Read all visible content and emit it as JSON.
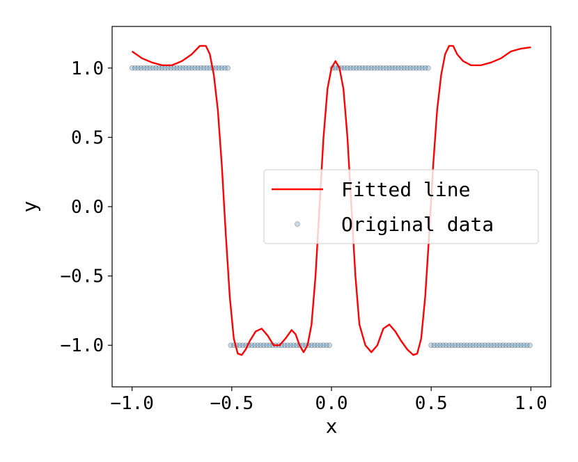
{
  "chart_data": {
    "type": "scatter",
    "title": "",
    "xlabel": "x",
    "ylabel": "y",
    "xlim": [
      -1.1,
      1.1
    ],
    "ylim": [
      -1.3,
      1.3
    ],
    "x_ticks": [
      -1.0,
      -0.5,
      0.0,
      0.5,
      1.0
    ],
    "x_tick_labels": [
      "−1.0",
      "−0.5",
      "0.0",
      "0.5",
      "1.0"
    ],
    "y_ticks": [
      -1.0,
      -0.5,
      0.0,
      0.5,
      1.0
    ],
    "y_tick_labels": [
      "−1.0",
      "−0.5",
      "0.0",
      "0.5",
      "1.0"
    ],
    "grid": false,
    "legend_position": "center-right",
    "legend": [
      "Fitted line",
      "Original data"
    ],
    "colors": {
      "fitted_line": "#ff0000",
      "original_data_fill": "#1f77b4",
      "original_data_edge": "#000000"
    },
    "series": [
      {
        "name": "Fitted line",
        "style": "line",
        "x": [
          -1.0,
          -0.95,
          -0.9,
          -0.85,
          -0.8,
          -0.75,
          -0.7,
          -0.66,
          -0.63,
          -0.61,
          -0.59,
          -0.57,
          -0.55,
          -0.53,
          -0.51,
          -0.49,
          -0.47,
          -0.45,
          -0.43,
          -0.41,
          -0.38,
          -0.35,
          -0.32,
          -0.29,
          -0.26,
          -0.23,
          -0.2,
          -0.18,
          -0.16,
          -0.14,
          -0.12,
          -0.1,
          -0.08,
          -0.06,
          -0.04,
          -0.02,
          0.0,
          0.02,
          0.04,
          0.06,
          0.08,
          0.1,
          0.12,
          0.14,
          0.17,
          0.2,
          0.23,
          0.26,
          0.29,
          0.32,
          0.35,
          0.38,
          0.41,
          0.43,
          0.45,
          0.47,
          0.49,
          0.51,
          0.53,
          0.55,
          0.57,
          0.59,
          0.61,
          0.63,
          0.66,
          0.7,
          0.75,
          0.8,
          0.85,
          0.9,
          0.95,
          1.0
        ],
        "y": [
          1.12,
          1.07,
          1.04,
          1.02,
          1.02,
          1.05,
          1.1,
          1.16,
          1.16,
          1.1,
          0.95,
          0.7,
          0.3,
          -0.2,
          -0.65,
          -0.95,
          -1.06,
          -1.07,
          -1.03,
          -0.97,
          -0.9,
          -0.88,
          -0.93,
          -1.0,
          -1.0,
          -0.95,
          -0.89,
          -0.92,
          -1.0,
          -1.05,
          -1.0,
          -0.85,
          -0.5,
          0.0,
          0.5,
          0.85,
          1.0,
          1.05,
          1.0,
          0.85,
          0.5,
          0.0,
          -0.5,
          -0.85,
          -1.0,
          -1.05,
          -1.0,
          -0.88,
          -0.85,
          -0.9,
          -0.97,
          -1.03,
          -1.07,
          -1.06,
          -0.95,
          -0.65,
          -0.2,
          0.3,
          0.7,
          0.95,
          1.1,
          1.16,
          1.16,
          1.1,
          1.05,
          1.02,
          1.02,
          1.04,
          1.07,
          1.12,
          1.14,
          1.15
        ]
      },
      {
        "name": "Original data",
        "style": "scatter",
        "x": [
          -1.0,
          -0.985,
          -0.97,
          -0.955,
          -0.94,
          -0.925,
          -0.91,
          -0.895,
          -0.88,
          -0.865,
          -0.85,
          -0.835,
          -0.82,
          -0.805,
          -0.79,
          -0.775,
          -0.76,
          -0.745,
          -0.73,
          -0.715,
          -0.7,
          -0.685,
          -0.67,
          -0.655,
          -0.64,
          -0.625,
          -0.61,
          -0.595,
          -0.58,
          -0.565,
          -0.55,
          -0.535,
          -0.52,
          -0.505,
          -0.49,
          -0.475,
          -0.46,
          -0.445,
          -0.43,
          -0.415,
          -0.4,
          -0.385,
          -0.37,
          -0.355,
          -0.34,
          -0.325,
          -0.31,
          -0.295,
          -0.28,
          -0.265,
          -0.25,
          -0.235,
          -0.22,
          -0.205,
          -0.19,
          -0.175,
          -0.16,
          -0.145,
          -0.13,
          -0.115,
          -0.1,
          -0.085,
          -0.07,
          -0.055,
          -0.04,
          -0.025,
          -0.01,
          0.005,
          0.02,
          0.035,
          0.05,
          0.065,
          0.08,
          0.095,
          0.11,
          0.125,
          0.14,
          0.155,
          0.17,
          0.185,
          0.2,
          0.215,
          0.23,
          0.245,
          0.26,
          0.275,
          0.29,
          0.305,
          0.32,
          0.335,
          0.35,
          0.365,
          0.38,
          0.395,
          0.41,
          0.425,
          0.44,
          0.455,
          0.47,
          0.485,
          0.5,
          0.515,
          0.53,
          0.545,
          0.56,
          0.575,
          0.59,
          0.605,
          0.62,
          0.635,
          0.65,
          0.665,
          0.68,
          0.695,
          0.71,
          0.725,
          0.74,
          0.755,
          0.77,
          0.785,
          0.8,
          0.815,
          0.83,
          0.845,
          0.86,
          0.875,
          0.89,
          0.905,
          0.92,
          0.935,
          0.95,
          0.965,
          0.98,
          0.995
        ],
        "y": [
          1,
          1,
          1,
          1,
          1,
          1,
          1,
          1,
          1,
          1,
          1,
          1,
          1,
          1,
          1,
          1,
          1,
          1,
          1,
          1,
          1,
          1,
          1,
          1,
          1,
          1,
          1,
          1,
          1,
          1,
          1,
          1,
          1,
          -1,
          -1,
          -1,
          -1,
          -1,
          -1,
          -1,
          -1,
          -1,
          -1,
          -1,
          -1,
          -1,
          -1,
          -1,
          -1,
          -1,
          -1,
          -1,
          -1,
          -1,
          -1,
          -1,
          -1,
          -1,
          -1,
          -1,
          -1,
          -1,
          -1,
          -1,
          -1,
          -1,
          -1,
          1,
          1,
          1,
          1,
          1,
          1,
          1,
          1,
          1,
          1,
          1,
          1,
          1,
          1,
          1,
          1,
          1,
          1,
          1,
          1,
          1,
          1,
          1,
          1,
          1,
          1,
          1,
          1,
          1,
          1,
          1,
          1,
          1,
          -1,
          -1,
          -1,
          -1,
          -1,
          -1,
          -1,
          -1,
          -1,
          -1,
          -1,
          -1,
          -1,
          -1,
          -1,
          -1,
          -1,
          -1,
          -1,
          -1,
          -1,
          -1,
          -1,
          -1,
          -1,
          -1,
          -1,
          -1,
          -1,
          -1,
          -1,
          -1,
          -1,
          -1
        ]
      }
    ]
  }
}
